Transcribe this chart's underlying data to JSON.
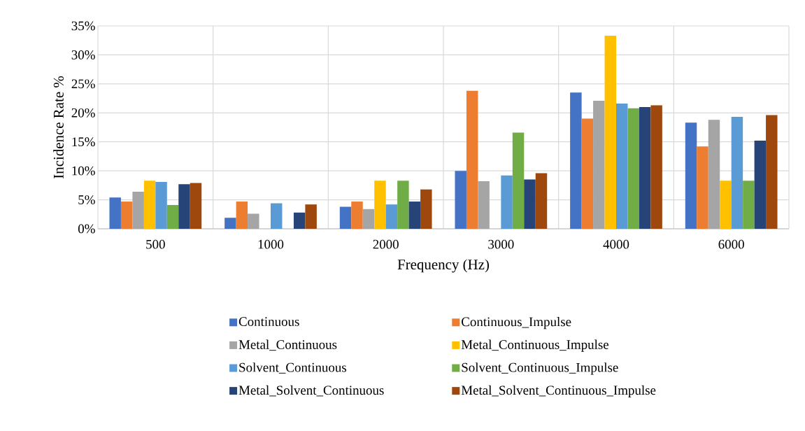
{
  "chart_data": {
    "type": "bar",
    "xlabel": "Frequency (Hz)",
    "ylabel": "Incidence Rate %",
    "categories": [
      "500",
      "1000",
      "2000",
      "3000",
      "4000",
      "6000"
    ],
    "series": [
      {
        "name": "Continuous",
        "color": "#4472c4",
        "values": [
          5.4,
          1.9,
          3.8,
          10.0,
          23.5,
          18.3
        ]
      },
      {
        "name": "Continuous_Impulse",
        "color": "#ed7d31",
        "values": [
          4.7,
          4.7,
          4.7,
          23.8,
          19.0,
          14.2
        ]
      },
      {
        "name": "Metal_Continuous",
        "color": "#a5a5a5",
        "values": [
          6.4,
          2.6,
          3.4,
          8.2,
          22.1,
          18.8
        ]
      },
      {
        "name": "Metal_Continuous_Impulse",
        "color": "#ffc000",
        "values": [
          8.3,
          0,
          8.3,
          0,
          33.3,
          8.3
        ]
      },
      {
        "name": "Solvent_Continuous",
        "color": "#5b9bd5",
        "values": [
          8.1,
          4.4,
          4.2,
          9.2,
          21.6,
          19.3
        ]
      },
      {
        "name": "Solvent_Continuous_Impulse",
        "color": "#70ad47",
        "values": [
          4.1,
          0,
          8.3,
          16.6,
          20.8,
          8.3
        ]
      },
      {
        "name": "Metal_Solvent_Continuous",
        "color": "#264478",
        "values": [
          7.7,
          2.8,
          4.7,
          8.5,
          21.0,
          15.2
        ]
      },
      {
        "name": "Metal_Solvent_Continuous_Impulse",
        "color": "#9e480e",
        "values": [
          7.9,
          4.2,
          6.8,
          9.6,
          21.3,
          19.6
        ]
      }
    ],
    "ylim": [
      0,
      35
    ],
    "yticks": [
      {
        "value": 0,
        "label": "0%"
      },
      {
        "value": 5,
        "label": "5%"
      },
      {
        "value": 10,
        "label": "10%"
      },
      {
        "value": 15,
        "label": "15%"
      },
      {
        "value": 20,
        "label": "20%"
      },
      {
        "value": 25,
        "label": "25%"
      },
      {
        "value": 30,
        "label": "30%"
      },
      {
        "value": 35,
        "label": "35%"
      }
    ],
    "grid": true,
    "legend": "bottom"
  }
}
